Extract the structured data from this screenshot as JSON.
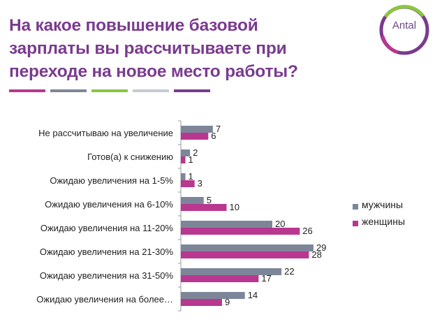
{
  "title_lines": [
    "На какое повышение базовой",
    "зарплаты вы рассчитываете при",
    "переходе на новое место работы?"
  ],
  "logo_text": "Antal",
  "colors": {
    "title": "#7a3b8f",
    "men": "#7d8699",
    "women": "#b8378f",
    "stripes": [
      "#b8378f",
      "#7d8699",
      "#8cc63f",
      "#c6cad2",
      "#7a3b8f"
    ]
  },
  "chart_data": {
    "type": "bar",
    "orientation": "horizontal",
    "categories": [
      "Не рассчитываю на увеличение",
      "Готов(а) к снижению",
      "Ожидаю увеличения на 1-5%",
      "Ожидаю увеличения на 6-10%",
      "Ожидаю увеличения на 11-20%",
      "Ожидаю увеличения на 21-30%",
      "Ожидаю увеличения на 31-50%",
      "Ожидаю увеличения на более…"
    ],
    "series": [
      {
        "name": "мужчины",
        "values": [
          7,
          2,
          1,
          5,
          20,
          29,
          22,
          14
        ]
      },
      {
        "name": "женщины",
        "values": [
          6,
          1,
          3,
          10,
          26,
          28,
          17,
          9
        ]
      }
    ],
    "xlim": [
      0,
      30
    ],
    "grid": false,
    "legend_position": "right"
  }
}
